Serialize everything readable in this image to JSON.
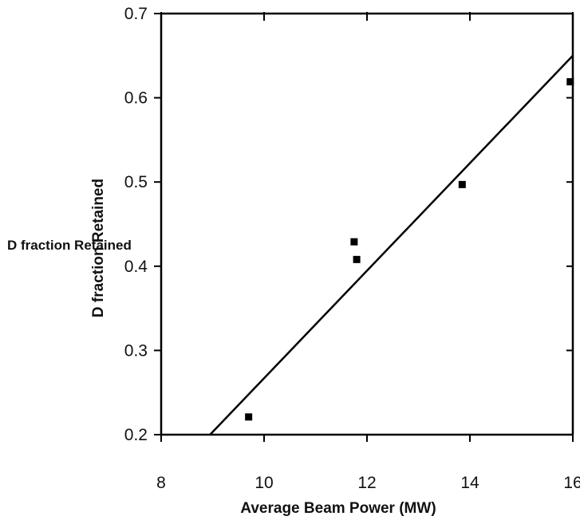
{
  "chart_data": {
    "type": "scatter",
    "title": "",
    "xlabel": "Average Beam Power (MW)",
    "ylabel": "D fraction Retained",
    "ylabel_overlay": "D fraction Retained",
    "xlim": [
      8,
      16
    ],
    "ylim": [
      0.2,
      0.7
    ],
    "x_ticks": [
      8,
      10,
      12,
      14,
      16
    ],
    "x_tick_labels": [
      "8",
      "10",
      "12",
      "14",
      "16"
    ],
    "y_ticks": [
      0.2,
      0.3,
      0.4,
      0.5,
      0.6,
      0.7
    ],
    "y_tick_labels": [
      "0.2",
      "0.3",
      "0.4",
      "0.5",
      "0.6",
      "0.7"
    ],
    "grid": false,
    "series": [
      {
        "points": [
          {
            "x": 9.7,
            "y": 0.221
          },
          {
            "x": 11.75,
            "y": 0.429
          },
          {
            "x": 11.8,
            "y": 0.408
          },
          {
            "x": 13.85,
            "y": 0.497
          },
          {
            "x": 15.95,
            "y": 0.619
          }
        ]
      }
    ],
    "trendline": {
      "x": [
        8.95,
        16.0
      ],
      "y": [
        0.2,
        0.65
      ]
    }
  }
}
